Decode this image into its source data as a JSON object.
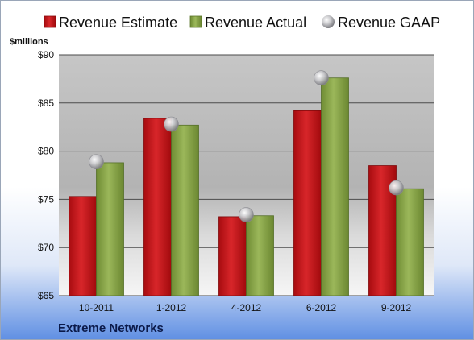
{
  "chart_data": {
    "type": "bar",
    "ylabel": "$millions",
    "ylim": [
      65,
      90
    ],
    "yticks": [
      65,
      70,
      75,
      80,
      85,
      90
    ],
    "ytick_labels": [
      "$65",
      "$70",
      "$75",
      "$80",
      "$85",
      "$90"
    ],
    "categories": [
      "10-2011",
      "1-2012",
      "4-2012",
      "6-2012",
      "9-2012"
    ],
    "series": [
      {
        "name": "Revenue Estimate",
        "kind": "bar",
        "color": "#c8181c",
        "values": [
          75.3,
          83.4,
          73.2,
          84.2,
          78.5
        ]
      },
      {
        "name": "Revenue Actual",
        "kind": "bar",
        "color": "#8aa64a",
        "values": [
          78.8,
          82.7,
          73.3,
          87.6,
          76.1
        ]
      },
      {
        "name": "Revenue GAAP",
        "kind": "marker",
        "color": "#b8b8bc",
        "values": [
          78.9,
          82.8,
          73.4,
          87.6,
          76.2
        ]
      }
    ],
    "legend_position": "top",
    "grid": true
  },
  "footer": {
    "company": "Extreme Networks"
  },
  "colors": {
    "background_top": "#ffffff",
    "background_bottom": "#5f8fe3",
    "plot_top": "#c4c4c4",
    "plot_bottom": "#f4f4f4",
    "gridline": "#4b4b4b"
  }
}
